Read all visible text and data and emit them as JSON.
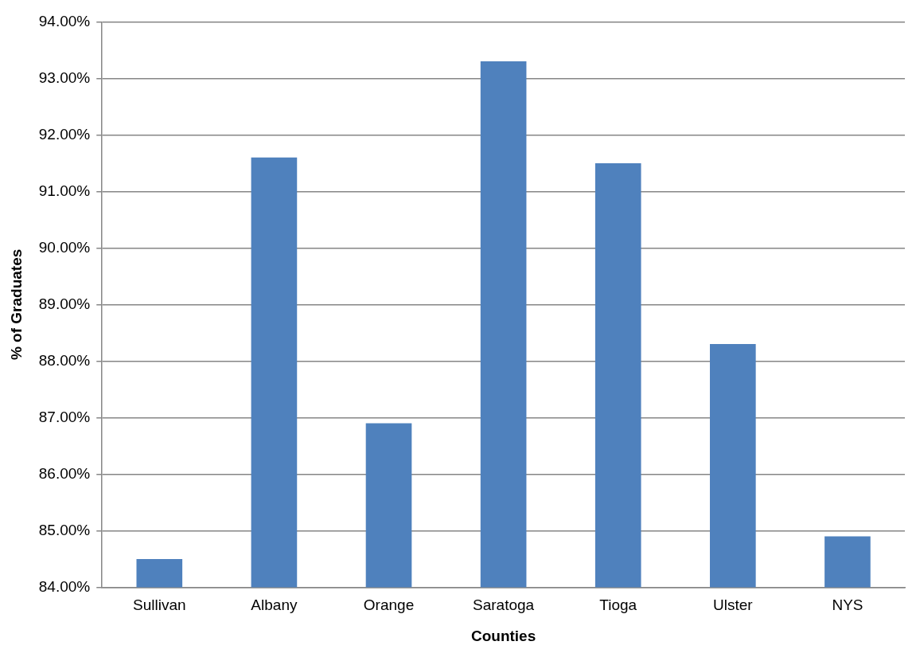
{
  "chart_data": {
    "type": "bar",
    "xlabel": "Counties",
    "ylabel": "% of Graduates",
    "categories": [
      "Sullivan",
      "Albany",
      "Orange",
      "Saratoga",
      "Tioga",
      "Ulster",
      "NYS"
    ],
    "values": [
      84.5,
      91.6,
      86.9,
      93.3,
      91.5,
      88.3,
      84.9
    ],
    "color": "#4f81bd",
    "ylim": [
      84,
      94
    ],
    "yticks": [
      {
        "value": 84,
        "label": "84.00%"
      },
      {
        "value": 85,
        "label": "85.00%"
      },
      {
        "value": 86,
        "label": "86.00%"
      },
      {
        "value": 87,
        "label": "87.00%"
      },
      {
        "value": 88,
        "label": "88.00%"
      },
      {
        "value": 89,
        "label": "89.00%"
      },
      {
        "value": 90,
        "label": "90.00%"
      },
      {
        "value": 91,
        "label": "91.00%"
      },
      {
        "value": 92,
        "label": "92.00%"
      },
      {
        "value": 93,
        "label": "93.00%"
      },
      {
        "value": 94,
        "label": "94.00%"
      }
    ],
    "grid": "y",
    "legend": false
  }
}
